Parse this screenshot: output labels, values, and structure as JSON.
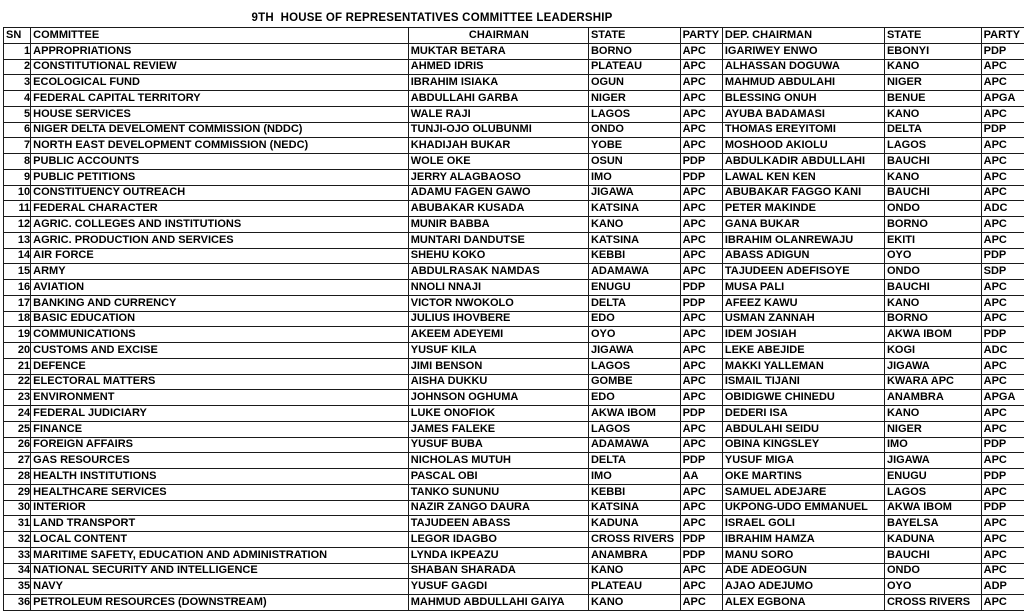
{
  "title": "9TH  HOUSE OF REPRESENTATIVES COMMITTEE LEADERSHIP",
  "colors": {
    "background": "#ffffff",
    "text": "#000000",
    "grid": "#1a1a1a"
  },
  "table": {
    "headers": [
      "SN",
      "COMMITTEE",
      "CHAIRMAN",
      "STATE",
      "PARTY",
      "DEP. CHAIRMAN",
      "STATE",
      "PARTY"
    ],
    "rows": [
      [
        "1",
        "APPROPRIATIONS",
        "MUKTAR BETARA",
        "BORNO",
        "APC",
        "IGARIWEY ENWO",
        "EBONYI",
        "PDP"
      ],
      [
        "2",
        "CONSTITUTIONAL REVIEW",
        "AHMED IDRIS",
        "PLATEAU",
        "APC",
        "ALHASSAN DOGUWA",
        "KANO",
        "APC"
      ],
      [
        "3",
        "ECOLOGICAL FUND",
        "IBRAHIM ISIAKA",
        "OGUN",
        "APC",
        "MAHMUD ABDULAHI",
        "NIGER",
        "APC"
      ],
      [
        "4",
        "FEDERAL CAPITAL TERRITORY",
        "ABDULLAHI GARBA",
        "NIGER",
        "APC",
        "BLESSING ONUH",
        "BENUE",
        "APGA"
      ],
      [
        "5",
        "HOUSE SERVICES",
        "WALE RAJI",
        "LAGOS",
        "APC",
        "AYUBA BADAMASI",
        "KANO",
        "APC"
      ],
      [
        "6",
        "NIGER DELTA DEVELOMENT COMMISSION (NDDC)",
        "TUNJI-OJO OLUBUNMI",
        "ONDO",
        "APC",
        "THOMAS EREYITOMI",
        "DELTA",
        "PDP"
      ],
      [
        "7",
        "NORTH EAST DEVELOPMENT COMMISSION (NEDC)",
        "KHADIJAH BUKAR",
        "YOBE",
        "APC",
        "MOSHOOD AKIOLU",
        "LAGOS",
        "APC"
      ],
      [
        "8",
        "PUBLIC ACCOUNTS",
        "WOLE OKE",
        "OSUN",
        "PDP",
        "ABDULKADIR ABDULLAHI",
        "BAUCHI",
        "APC"
      ],
      [
        "9",
        "PUBLIC PETITIONS",
        "JERRY ALAGBAOSO",
        "IMO",
        "PDP",
        "LAWAL KEN KEN",
        "KANO",
        "APC"
      ],
      [
        "10",
        "CONSTITUENCY OUTREACH",
        "ADAMU FAGEN GAWO",
        "JIGAWA",
        "APC",
        " ABUBAKAR FAGGO KANI",
        "BAUCHI",
        "APC"
      ],
      [
        "11",
        "FEDERAL CHARACTER",
        "ABUBAKAR KUSADA",
        "KATSINA",
        "APC",
        "PETER MAKINDE",
        "ONDO",
        "ADC"
      ],
      [
        "12",
        "AGRIC. COLLEGES AND INSTITUTIONS",
        "MUNIR BABBA",
        "KANO",
        "APC",
        "GANA BUKAR",
        "BORNO",
        "APC"
      ],
      [
        "13",
        "AGRIC. PRODUCTION AND SERVICES",
        "MUNTARI DANDUTSE",
        "KATSINA",
        "APC",
        "IBRAHIM OLANREWAJU",
        "EKITI",
        "APC"
      ],
      [
        "14",
        "AIR FORCE",
        "SHEHU KOKO",
        "KEBBI",
        "APC",
        "ABASS ADIGUN",
        "OYO",
        "PDP"
      ],
      [
        "15",
        "ARMY",
        "ABDULRASAK NAMDAS",
        "ADAMAWA",
        "APC",
        "TAJUDEEN ADEFISOYE",
        "ONDO",
        "SDP"
      ],
      [
        "16",
        "AVIATION",
        "NNOLI NNAJI",
        "ENUGU",
        "PDP",
        "MUSA PALI",
        "BAUCHI",
        "APC"
      ],
      [
        "17",
        "BANKING AND CURRENCY",
        "VICTOR NWOKOLO",
        "DELTA",
        "PDP",
        "AFEEZ KAWU",
        "KANO",
        "APC"
      ],
      [
        "18",
        "BASIC EDUCATION",
        "JULIUS IHOVBERE",
        "EDO",
        "APC",
        "USMAN ZANNAH",
        "BORNO",
        "APC"
      ],
      [
        "19",
        "COMMUNICATIONS",
        "AKEEM ADEYEMI",
        "OYO",
        "APC",
        "IDEM JOSIAH",
        "AKWA IBOM",
        "PDP"
      ],
      [
        "20",
        "CUSTOMS AND EXCISE",
        "YUSUF KILA",
        "JIGAWA",
        "APC",
        "LEKE ABEJIDE",
        "KOGI",
        "ADC"
      ],
      [
        "21",
        "DEFENCE",
        "JIMI BENSON",
        "LAGOS",
        "APC",
        "MAKKI YALLEMAN",
        "JIGAWA",
        "APC"
      ],
      [
        "22",
        "ELECTORAL MATTERS",
        "AISHA DUKKU",
        "GOMBE",
        "APC",
        "ISMAIL TIJANI",
        "KWARA APC",
        "APC"
      ],
      [
        "23",
        "ENVIRONMENT",
        "JOHNSON OGHUMA",
        "EDO",
        "APC",
        "OBIDIGWE CHINEDU",
        "ANAMBRA",
        "APGA"
      ],
      [
        "24",
        "FEDERAL JUDICIARY",
        "LUKE ONOFIOK",
        "AKWA IBOM",
        "PDP",
        "DEDERI ISA",
        "KANO",
        "APC"
      ],
      [
        "25",
        "FINANCE",
        "JAMES FALEKE",
        "LAGOS",
        "APC",
        "ABDULAHI SEIDU",
        "NIGER",
        "APC"
      ],
      [
        "26",
        "FOREIGN AFFAIRS",
        "YUSUF BUBA",
        "ADAMAWA",
        "APC",
        "OBINA KINGSLEY",
        "IMO",
        "PDP"
      ],
      [
        "27",
        "GAS RESOURCES",
        "NICHOLAS MUTUH",
        "DELTA",
        "PDP",
        "YUSUF MIGA",
        "JIGAWA",
        "APC"
      ],
      [
        "28",
        "HEALTH INSTITUTIONS",
        "PASCAL OBI",
        "IMO",
        "AA",
        "OKE MARTINS",
        "ENUGU",
        "PDP"
      ],
      [
        "29",
        "HEALTHCARE SERVICES",
        "TANKO SUNUNU",
        "KEBBI",
        "APC",
        "SAMUEL ADEJARE",
        "LAGOS",
        "APC"
      ],
      [
        "30",
        "INTERIOR",
        "NAZIR ZANGO DAURA",
        "KATSINA",
        "APC",
        "UKPONG-UDO EMMANUEL",
        "AKWA IBOM",
        "PDP"
      ],
      [
        "31",
        "LAND TRANSPORT",
        "TAJUDEEN ABASS",
        "KADUNA",
        "APC",
        "ISRAEL GOLI",
        "BAYELSA",
        "APC"
      ],
      [
        "32",
        "LOCAL CONTENT",
        "LEGOR IDAGBO",
        "CROSS RIVERS",
        "PDP",
        "IBRAHIM HAMZA",
        "KADUNA",
        "APC"
      ],
      [
        "33",
        "MARITIME SAFETY, EDUCATION AND ADMINISTRATION",
        "LYNDA IKPEAZU",
        "ANAMBRA",
        "PDP",
        "MANU SORO",
        "BAUCHI",
        "APC"
      ],
      [
        "34",
        "NATIONAL SECURITY AND INTELLIGENCE",
        "SHABAN SHARADA",
        "KANO",
        "APC",
        "ADE ADEOGUN",
        "ONDO",
        "APC"
      ],
      [
        "35",
        "NAVY",
        "YUSUF GAGDI",
        "PLATEAU",
        "APC",
        "AJAO ADEJUMO",
        "OYO",
        "ADP"
      ],
      [
        "36",
        "PETROLEUM RESOURCES  (DOWNSTREAM)",
        "MAHMUD ABDULLAHI GAIYA",
        "KANO",
        "APC",
        "ALEX EGBONA",
        "CROSS RIVERS",
        "APC"
      ]
    ]
  }
}
